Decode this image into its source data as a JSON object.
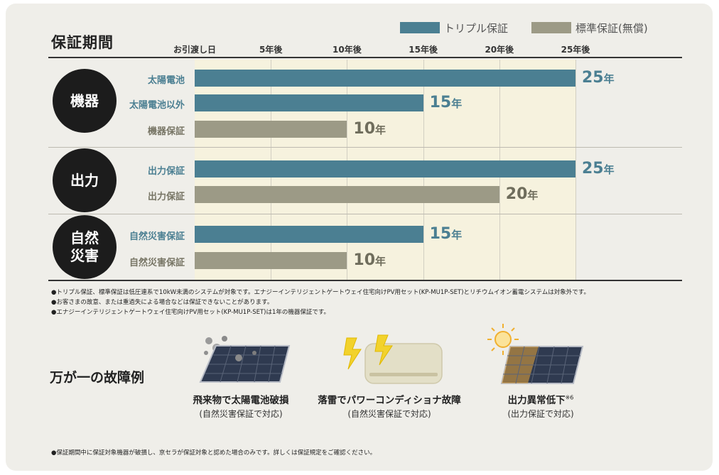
{
  "colors": {
    "triple": "#4b7f92",
    "standard": "#9c9a86",
    "plot_bg": "#f6f2de"
  },
  "legend": [
    {
      "label": "トリプル保証",
      "color": "#4b7f92"
    },
    {
      "label": "標準保証(無償)",
      "color": "#9c9a86"
    }
  ],
  "title": "保証期間",
  "chart_data": {
    "type": "bar",
    "orientation": "horizontal",
    "title": "保証期間",
    "xlim": [
      0,
      25
    ],
    "x_ticks": [
      {
        "value": 0,
        "label": "お引渡し日"
      },
      {
        "value": 5,
        "label": "5年後"
      },
      {
        "value": 10,
        "label": "10年後"
      },
      {
        "value": 15,
        "label": "15年後"
      },
      {
        "value": 20,
        "label": "20年後"
      },
      {
        "value": 25,
        "label": "25年後"
      }
    ],
    "unit": "年",
    "groups": [
      {
        "name": [
          "機器"
        ],
        "bars": [
          {
            "label": "太陽電池",
            "value": 25,
            "series": "triple"
          },
          {
            "label": "太陽電池以外",
            "value": 15,
            "series": "triple"
          },
          {
            "label": "機器保証",
            "value": 10,
            "series": "standard"
          }
        ]
      },
      {
        "name": [
          "出力"
        ],
        "bars": [
          {
            "label": "出力保証",
            "value": 25,
            "series": "triple"
          },
          {
            "label": "出力保証",
            "value": 20,
            "series": "standard"
          }
        ]
      },
      {
        "name": [
          "自然",
          "災害"
        ],
        "bars": [
          {
            "label": "自然災害保証",
            "value": 15,
            "series": "triple"
          },
          {
            "label": "自然災害保証",
            "value": 10,
            "series": "standard"
          }
        ]
      }
    ]
  },
  "notes": [
    "●トリプル保証、標準保証は低圧連系で10kW未満のシステムが対象です。エナジーインテリジェントゲートウェイ住宅向けPV用セット(KP-MU1P-SET)とリチウムイオン蓄電システムは対象外です。",
    "●お客さまの故意、または重過失による場合などは保証できないことがあります。",
    "●エナジーインテリジェントゲートウェイ住宅向けPV用セット(KP-MU1P-SET)は1年の機器保証です。"
  ],
  "failure_title": "万が一の故障例",
  "examples": [
    {
      "label": "飛来物で太陽電池破損",
      "sub": "(自然災害保証で対応)"
    },
    {
      "label": "落雷でパワーコンディショナ故障",
      "sub": "(自然災害保証で対応)"
    },
    {
      "label": "出力異常低下",
      "sup": "※6",
      "sub": "(出力保証で対応)"
    }
  ],
  "footnote": "●保証期間中に保証対象機器が破損し、京セラが保証対象と認めた場合のみです。詳しくは保証規定をご確認ください。"
}
